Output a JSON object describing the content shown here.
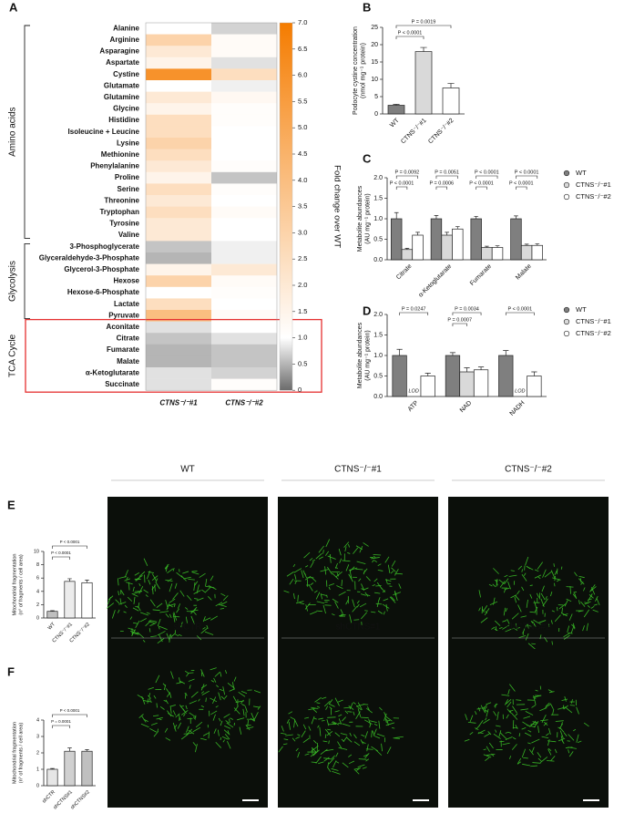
{
  "chart_data": [
    {
      "type": "heatmap",
      "letter": "A",
      "columns": [
        "CTNS⁻/⁻#1",
        "CTNS⁻/⁻#2"
      ],
      "colorscale": [
        [
          0,
          "#6b6b6b"
        ],
        [
          1,
          "#ffffff"
        ],
        [
          7,
          "#f57c00"
        ]
      ],
      "ylim": [
        0,
        7
      ],
      "yticks": [
        0,
        0.5,
        {
          "value": 1,
          "label": "1.0"
        },
        1.5,
        {
          "value": 2,
          "label": "2.0"
        },
        2.5,
        {
          "value": 3,
          "label": "3.0"
        },
        3.5,
        {
          "value": 4,
          "label": "4.0"
        },
        4.5,
        {
          "value": 5,
          "label": "5.0"
        },
        5.5,
        {
          "value": 6,
          "label": "6.0"
        },
        6.5,
        {
          "value": 7,
          "label": "7.0"
        }
      ],
      "colorbar_label": "Fold change over WT",
      "groups": [
        {
          "name": "Amino acids",
          "rows": [
            "Alanine",
            "Arginine",
            "Asparagine",
            "Aspartate",
            "Cystine",
            "Glutamate",
            "Glutamine",
            "Glycine",
            "Histidine",
            "Isoleucine + Leucine",
            "Lysine",
            "Methionine",
            "Phenylalanine",
            "Proline",
            "Serine",
            "Threonine",
            "Tryptophan",
            "Tyrosine",
            "Valine"
          ],
          "values": [
            [
              1.0,
              0.7
            ],
            [
              3.0,
              1.2
            ],
            [
              2.0,
              1.2
            ],
            [
              1.5,
              0.8
            ],
            [
              6.0,
              2.5
            ],
            [
              1.0,
              0.9
            ],
            [
              2.0,
              1.3
            ],
            [
              1.5,
              1.1
            ],
            [
              2.5,
              1.1
            ],
            [
              2.5,
              1.0
            ],
            [
              3.0,
              1.0
            ],
            [
              2.5,
              1.0
            ],
            [
              2.0,
              1.1
            ],
            [
              1.5,
              0.6
            ],
            [
              2.5,
              1.1
            ],
            [
              2.0,
              1.0
            ],
            [
              2.5,
              1.2
            ],
            [
              2.0,
              1.0
            ],
            [
              2.0,
              1.0
            ]
          ]
        },
        {
          "name": "Glycolysis",
          "rows": [
            "3-Phosphoglycerate",
            "Glyceraldehyde-3-Phosphate",
            "Glycerol-3-Phosphate",
            "Hexose",
            "Hexose-6-Phosphate",
            "Lactate",
            "Pyruvate"
          ],
          "values": [
            [
              0.6,
              0.9
            ],
            [
              0.5,
              0.9
            ],
            [
              1.5,
              2.0
            ],
            [
              3.0,
              1.2
            ],
            [
              1.0,
              1.1
            ],
            [
              2.5,
              1.0
            ],
            [
              4.0,
              1.2
            ]
          ]
        },
        {
          "name": "TCA Cycle",
          "highlight_color": "#e53030",
          "rows": [
            "Aconitate",
            "Citrate",
            "Fumarate",
            "Malate",
            "α-Ketoglutarate",
            "Succinate"
          ],
          "values": [
            [
              0.8,
              1.0
            ],
            [
              0.6,
              0.8
            ],
            [
              0.5,
              0.6
            ],
            [
              0.5,
              0.6
            ],
            [
              0.8,
              0.7
            ],
            [
              0.8,
              1.1
            ]
          ]
        }
      ]
    },
    {
      "type": "bar",
      "letter": "B",
      "ylabel": [
        "Podocyte cystine concentration",
        "(nmol mg⁻¹ protein)"
      ],
      "categories": [
        "WT",
        "CTNS⁻/⁻#1",
        "CTNS⁻/⁻#2"
      ],
      "values": [
        2.5,
        18,
        7.5
      ],
      "errors": [
        0.3,
        1.2,
        1.3
      ],
      "colors": [
        "#7f7f7f",
        "#d9d9d9",
        "#ffffff"
      ],
      "ylim": [
        0,
        25
      ],
      "yticks": [
        0,
        5,
        10,
        15,
        20,
        25
      ],
      "pvalues": [
        "P < 0.0001",
        "P = 0.0019"
      ]
    },
    {
      "type": "bar",
      "letter": "C",
      "ylabel": [
        "Metabolite abundances",
        "(AU mg⁻¹ protein)"
      ],
      "categories": [
        "Citrate",
        "α-Ketoglutarate",
        "Fumarate",
        "Malate"
      ],
      "series": [
        {
          "name": "WT",
          "color": "#7f7f7f",
          "values": [
            1.0,
            1.0,
            1.0,
            1.0
          ],
          "errors": [
            0.15,
            0.08,
            0.06,
            0.07
          ]
        },
        {
          "name": "CTNS⁻/⁻#1",
          "color": "#d9d9d9",
          "values": [
            0.25,
            0.6,
            0.3,
            0.35
          ],
          "errors": [
            0.03,
            0.07,
            0.03,
            0.03
          ]
        },
        {
          "name": "CTNS⁻/⁻#2",
          "color": "#ffffff",
          "values": [
            0.6,
            0.75,
            0.3,
            0.35
          ],
          "errors": [
            0.07,
            0.06,
            0.04,
            0.04
          ]
        }
      ],
      "ylim": [
        0,
        2
      ],
      "yticks": [
        {
          "value": 0,
          "label": "0.0"
        },
        0.5,
        {
          "value": 1,
          "label": "1.0"
        },
        1.5,
        {
          "value": 2,
          "label": "2.0"
        }
      ],
      "pvalues": [
        "P = 0.0092",
        "P < 0.0001",
        "P = 0.0051",
        "P = 0.0006",
        "P < 0.0001",
        "P < 0.0001",
        "P < 0.0001",
        "P < 0.0001"
      ]
    },
    {
      "type": "bar",
      "letter": "D",
      "ylabel": [
        "Metabolite abundances",
        "(AU mg⁻¹ protein)"
      ],
      "categories": [
        "ATP",
        "NAD",
        "NADH"
      ],
      "series": [
        {
          "name": "WT",
          "color": "#7f7f7f",
          "values": [
            1.0,
            1.0,
            1.0
          ],
          "errors": [
            0.15,
            0.07,
            0.12
          ]
        },
        {
          "name": "CTNS⁻/⁻#1",
          "color": "#d9d9d9",
          "values": [
            null,
            0.6,
            null
          ],
          "errors": [
            null,
            0.1,
            null
          ]
        },
        {
          "name": "CTNS⁻/⁻#2",
          "color": "#ffffff",
          "values": [
            0.5,
            0.65,
            0.5
          ],
          "errors": [
            0.07,
            0.07,
            0.1
          ]
        }
      ],
      "null_label": "LOD",
      "ylim": [
        0,
        2
      ],
      "yticks": [
        {
          "value": 0,
          "label": "0.0"
        },
        0.5,
        {
          "value": 1,
          "label": "1.0"
        },
        1.5,
        {
          "value": 2,
          "label": "2.0"
        }
      ],
      "pvalues": [
        "P = 0.0247",
        "P = 0.0034",
        "P = 0.0007",
        "P < 0.0001"
      ]
    },
    {
      "type": "bar",
      "letter": "E",
      "ylabel": [
        "Mitochondrial fragmentation",
        "(n° of fragments / cell area)"
      ],
      "categories": [
        "WT",
        "CTNS⁻/⁻#1",
        "CTNS⁻/⁻#2"
      ],
      "values": [
        1.0,
        5.5,
        5.3
      ],
      "errors": [
        0.1,
        0.4,
        0.4
      ],
      "colors": [
        "#bfbfbf",
        "#ececec",
        "#ffffff"
      ],
      "ylim": [
        0,
        10
      ],
      "yticks": [
        0,
        2,
        4,
        6,
        8,
        10
      ],
      "pvalues": [
        "P < 0.0001",
        "P < 0.0001"
      ],
      "image_titles": [
        "WT",
        "CTNS⁻/⁻#1",
        "CTNS⁻/⁻#2"
      ]
    },
    {
      "type": "bar",
      "letter": "F",
      "ylabel": [
        "Mitochondrial fragmentation",
        "(n° of fragments / cell area)"
      ],
      "categories": [
        "shCTR",
        "shCTNS#1",
        "shCTNS#2"
      ],
      "values": [
        1.0,
        2.1,
        2.1
      ],
      "errors": [
        0.05,
        0.2,
        0.1
      ],
      "colors": [
        "#e6e6e6",
        "#d0d0d0",
        "#c0c0c0"
      ],
      "ylim": [
        0,
        4
      ],
      "yticks": [
        0,
        1,
        2,
        3,
        4
      ],
      "pvalues": [
        "P < 0.0001",
        "P = 0.0001"
      ],
      "image_titles": [
        "shCTR",
        "shCTNS#1",
        "shCTNS#2"
      ]
    }
  ]
}
